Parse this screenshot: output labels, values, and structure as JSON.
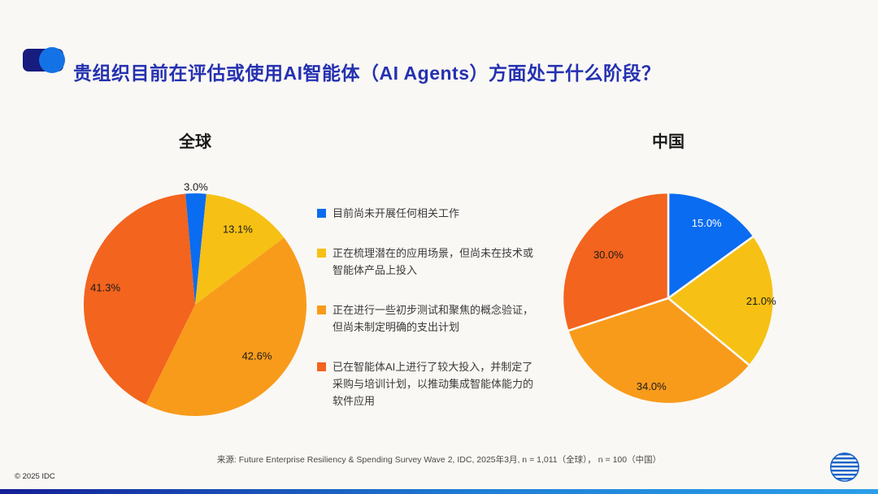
{
  "header": {
    "title": "贵组织目前在评估或使用AI智能体（AI Agents）方面处于什么阶段？",
    "title_color": "#2531b1"
  },
  "legend": {
    "items": [
      {
        "label": "目前尚未开展任何相关工作",
        "color": "#0a6cf0"
      },
      {
        "label": "正在梳理潜在的应用场景，但尚未在技术或智能体产品上投入",
        "color": "#f6c114"
      },
      {
        "label": "正在进行一些初步测试和聚焦的概念验证，但尚未制定明确的支出计划",
        "color": "#f89b1b"
      },
      {
        "label": "已在智能体AI上进行了较大投入，并制定了采购与培训计划，以推动集成智能体能力的软件应用",
        "color": "#f3641e"
      }
    ]
  },
  "chart_data": [
    {
      "type": "pie",
      "title": "全球",
      "start_angle": -5,
      "slice_gap": false,
      "legend_position": "right-center",
      "slices": [
        {
          "pct": 3.0,
          "pct_label": "3.0%",
          "color": "#0a6cf0",
          "label_r": 1.06,
          "label_color": "#1a1a1a"
        },
        {
          "pct": 13.1,
          "pct_label": "13.1%",
          "color": "#f6c114",
          "label_r": 0.78,
          "label_color": "#1a1a1a"
        },
        {
          "pct": 42.6,
          "pct_label": "42.6%",
          "color": "#f89b1b",
          "label_r": 0.72,
          "label_color": "#1a1a1a"
        },
        {
          "pct": 41.3,
          "pct_label": "41.3%",
          "color": "#f3641e",
          "label_r": 0.82,
          "label_color": "#1a1a1a"
        }
      ]
    },
    {
      "type": "pie",
      "title": "中国",
      "start_angle": 0,
      "slice_gap": true,
      "slices": [
        {
          "pct": 15.0,
          "pct_label": "15.0%",
          "color": "#0a6cf0",
          "label_r": 0.8,
          "label_color": "#ffffff"
        },
        {
          "pct": 21.0,
          "pct_label": "21.0%",
          "color": "#f6c114",
          "label_r": 0.88,
          "label_color": "#1a1a1a"
        },
        {
          "pct": 34.0,
          "pct_label": "34.0%",
          "color": "#f89b1b",
          "label_r": 0.85,
          "label_color": "#1a1a1a"
        },
        {
          "pct": 30.0,
          "pct_label": "30.0%",
          "color": "#f3641e",
          "label_r": 0.7,
          "label_color": "#1a1a1a"
        }
      ]
    }
  ],
  "footer": {
    "source": "来源:  Future Enterprise Resiliency & Spending Survey Wave 2, IDC, 2025年3月, n = 1,011（全球）， n = 100（中国）",
    "copyright": "© 2025 IDC"
  },
  "colors": {
    "background": "#faf8f4",
    "title_blue": "#2531b1",
    "decoration_navy": "#171c7e",
    "decoration_blue": "#1373e6",
    "logo_blue": "#1a63c9"
  }
}
